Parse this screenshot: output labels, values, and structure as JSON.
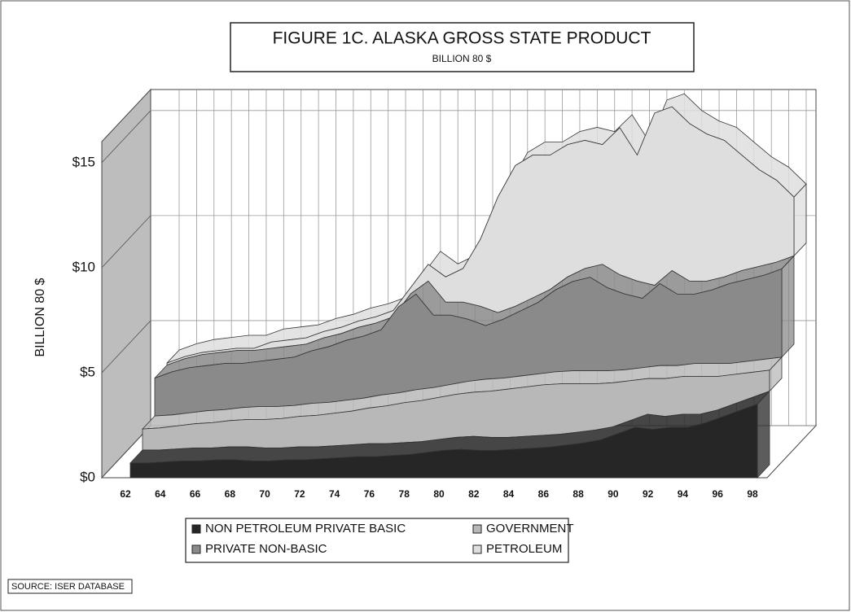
{
  "chart_data": {
    "type": "area3d",
    "title": "FIGURE 1C. ALASKA GROSS STATE PRODUCT",
    "subtitle": "BILLION 80 $",
    "y_label": "BILLION 80 $",
    "source": "SOURCE: ISER DATABASE",
    "stacked": true,
    "categories": [
      "62",
      null,
      "64",
      null,
      "66",
      null,
      "68",
      null,
      "70",
      null,
      "72",
      null,
      "74",
      null,
      "76",
      null,
      "78",
      null,
      "80",
      null,
      "82",
      null,
      "84",
      null,
      "86",
      null,
      "88",
      null,
      "90",
      null,
      "92",
      null,
      "94",
      null,
      "96",
      null,
      "98"
    ],
    "series": [
      {
        "name": "NON PETROLEUM PRIVATE BASIC",
        "color": "#262626",
        "values": [
          0.7,
          0.7,
          0.75,
          0.8,
          0.8,
          0.85,
          0.85,
          0.8,
          0.8,
          0.85,
          0.85,
          0.9,
          0.95,
          1.0,
          1.0,
          1.05,
          1.1,
          1.2,
          1.3,
          1.35,
          1.3,
          1.3,
          1.35,
          1.4,
          1.45,
          1.55,
          1.65,
          1.8,
          2.1,
          2.4,
          2.3,
          2.4,
          2.4,
          2.6,
          2.9,
          3.2,
          3.5
        ]
      },
      {
        "name": "GOVERNMENT",
        "color": "#b8b8b8",
        "values": [
          1.0,
          1.05,
          1.1,
          1.15,
          1.2,
          1.25,
          1.3,
          1.35,
          1.4,
          1.45,
          1.5,
          1.55,
          1.6,
          1.7,
          1.8,
          1.9,
          1.95,
          2.0,
          2.05,
          2.1,
          2.2,
          2.3,
          2.35,
          2.4,
          2.4,
          2.3,
          2.2,
          2.1,
          1.9,
          1.7,
          1.8,
          1.8,
          1.8,
          1.6,
          1.4,
          1.2,
          1.0
        ]
      },
      {
        "name": "PRIVATE NON-BASIC",
        "color": "#8a8a8a",
        "values": [
          1.8,
          2.05,
          2.15,
          2.15,
          2.2,
          2.1,
          2.15,
          2.25,
          2.3,
          2.5,
          2.65,
          2.85,
          2.95,
          3.1,
          4.1,
          4.55,
          3.45,
          3.3,
          2.95,
          2.55,
          2.8,
          3.1,
          3.4,
          3.9,
          4.25,
          4.45,
          3.95,
          3.6,
          3.3,
          3.9,
          3.4,
          3.3,
          3.5,
          3.8,
          3.9,
          4.0,
          4.2
        ]
      },
      {
        "name": "PETROLEUM",
        "color": "#dedede",
        "values": [
          0.1,
          0.1,
          0.1,
          0.1,
          0.1,
          0.1,
          0.3,
          0.3,
          0.3,
          0.3,
          0.3,
          0.3,
          0.3,
          0.3,
          0.3,
          0.8,
          1.2,
          1.6,
          3.2,
          5.5,
          6.7,
          6.8,
          6.4,
          6.3,
          6.1,
          5.7,
          7.0,
          6.0,
          8.2,
          7.8,
          7.5,
          7.0,
          6.5,
          5.5,
          4.6,
          3.9,
          2.8
        ]
      }
    ],
    "ylim": [
      0,
      16
    ],
    "yticks": [
      {
        "value": 0,
        "label": "$0"
      },
      {
        "value": 5,
        "label": "$5"
      },
      {
        "value": 10,
        "label": "$10"
      },
      {
        "value": 15,
        "label": "$15"
      }
    ],
    "grid": true,
    "legend": "bottom"
  }
}
